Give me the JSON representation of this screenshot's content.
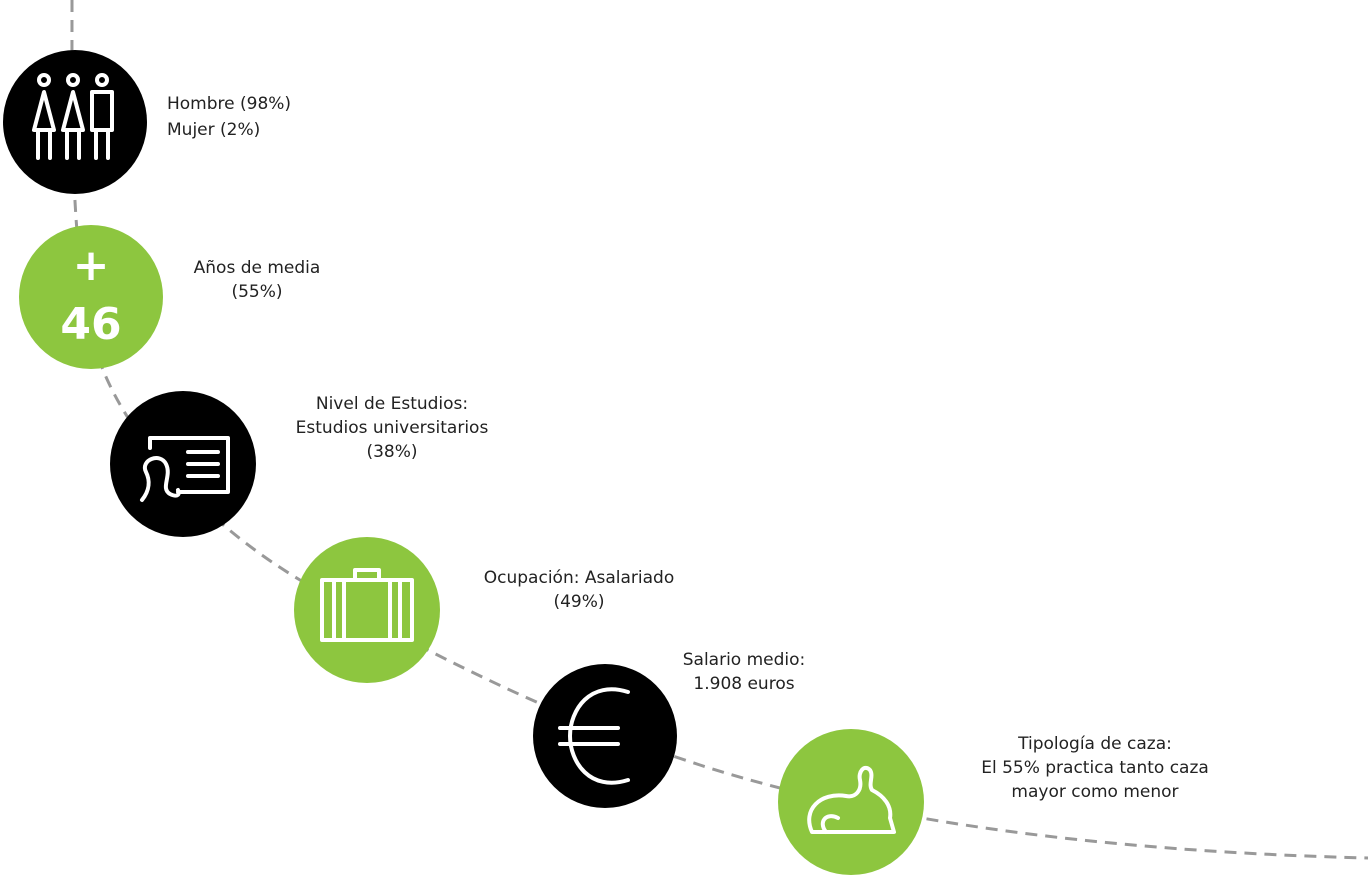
{
  "items": [
    {
      "lines": [
        "Hombre (98%)",
        "Mujer (2%)"
      ]
    },
    {
      "icon_text": [
        "+",
        "46"
      ],
      "lines": [
        "Años de media",
        "(55%)"
      ]
    },
    {
      "lines": [
        "Nivel de Estudios:",
        "Estudios universitarios",
        "(38%)"
      ]
    },
    {
      "lines": [
        "Ocupación: Asalariado",
        "(49%)"
      ]
    },
    {
      "lines": [
        "Salario medio:",
        "1.908 euros"
      ]
    },
    {
      "lines": [
        "Tipología de caza:",
        "El 55% practica tanto caza",
        "mayor como menor"
      ]
    }
  ]
}
